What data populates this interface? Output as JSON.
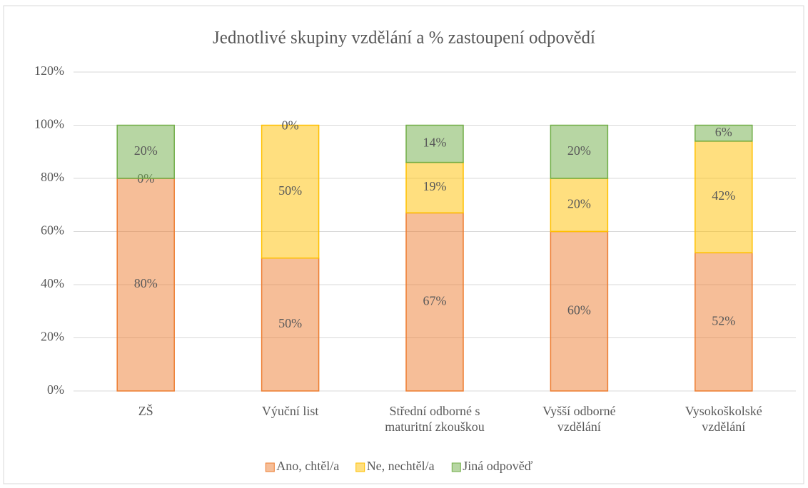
{
  "chart_data": {
    "type": "stacked_bar",
    "title": "Jednotlivé skupiny vzdělání a % zastoupení odpovědí",
    "categories": [
      "ZŠ",
      "Výuční list",
      "Střední odborné s\nmaturitní zkouškou",
      "Vyšší odborné\nvzdělání",
      "Vysokoškolské\nvzdělání"
    ],
    "series": [
      {
        "name": "Ano, chtěl/a",
        "color": "#ed7d31",
        "values": [
          80,
          50,
          67,
          60,
          52
        ],
        "value_labels": [
          "80%",
          "50%",
          "67%",
          "60%",
          "52%"
        ]
      },
      {
        "name": "Ne, nechtěl/a",
        "color": "#ffc000",
        "values": [
          0,
          50,
          19,
          20,
          42
        ],
        "value_labels": [
          "0%",
          "50%",
          "19%",
          "20%",
          "42%"
        ]
      },
      {
        "name": "Jiná odpověď",
        "color": "#70ad47",
        "values": [
          20,
          0,
          14,
          20,
          6
        ],
        "value_labels": [
          "20%",
          "0%",
          "14%",
          "20%",
          "6%"
        ]
      }
    ],
    "ylim": [
      0,
      120
    ],
    "yticks": [
      {
        "value": 0,
        "label": "0%"
      },
      {
        "value": 20,
        "label": "20%"
      },
      {
        "value": 40,
        "label": "40%"
      },
      {
        "value": 60,
        "label": "60%"
      },
      {
        "value": 80,
        "label": "80%"
      },
      {
        "value": 100,
        "label": "100%"
      },
      {
        "value": 120,
        "label": "120%"
      }
    ],
    "grid": true,
    "legend": "bottom"
  }
}
